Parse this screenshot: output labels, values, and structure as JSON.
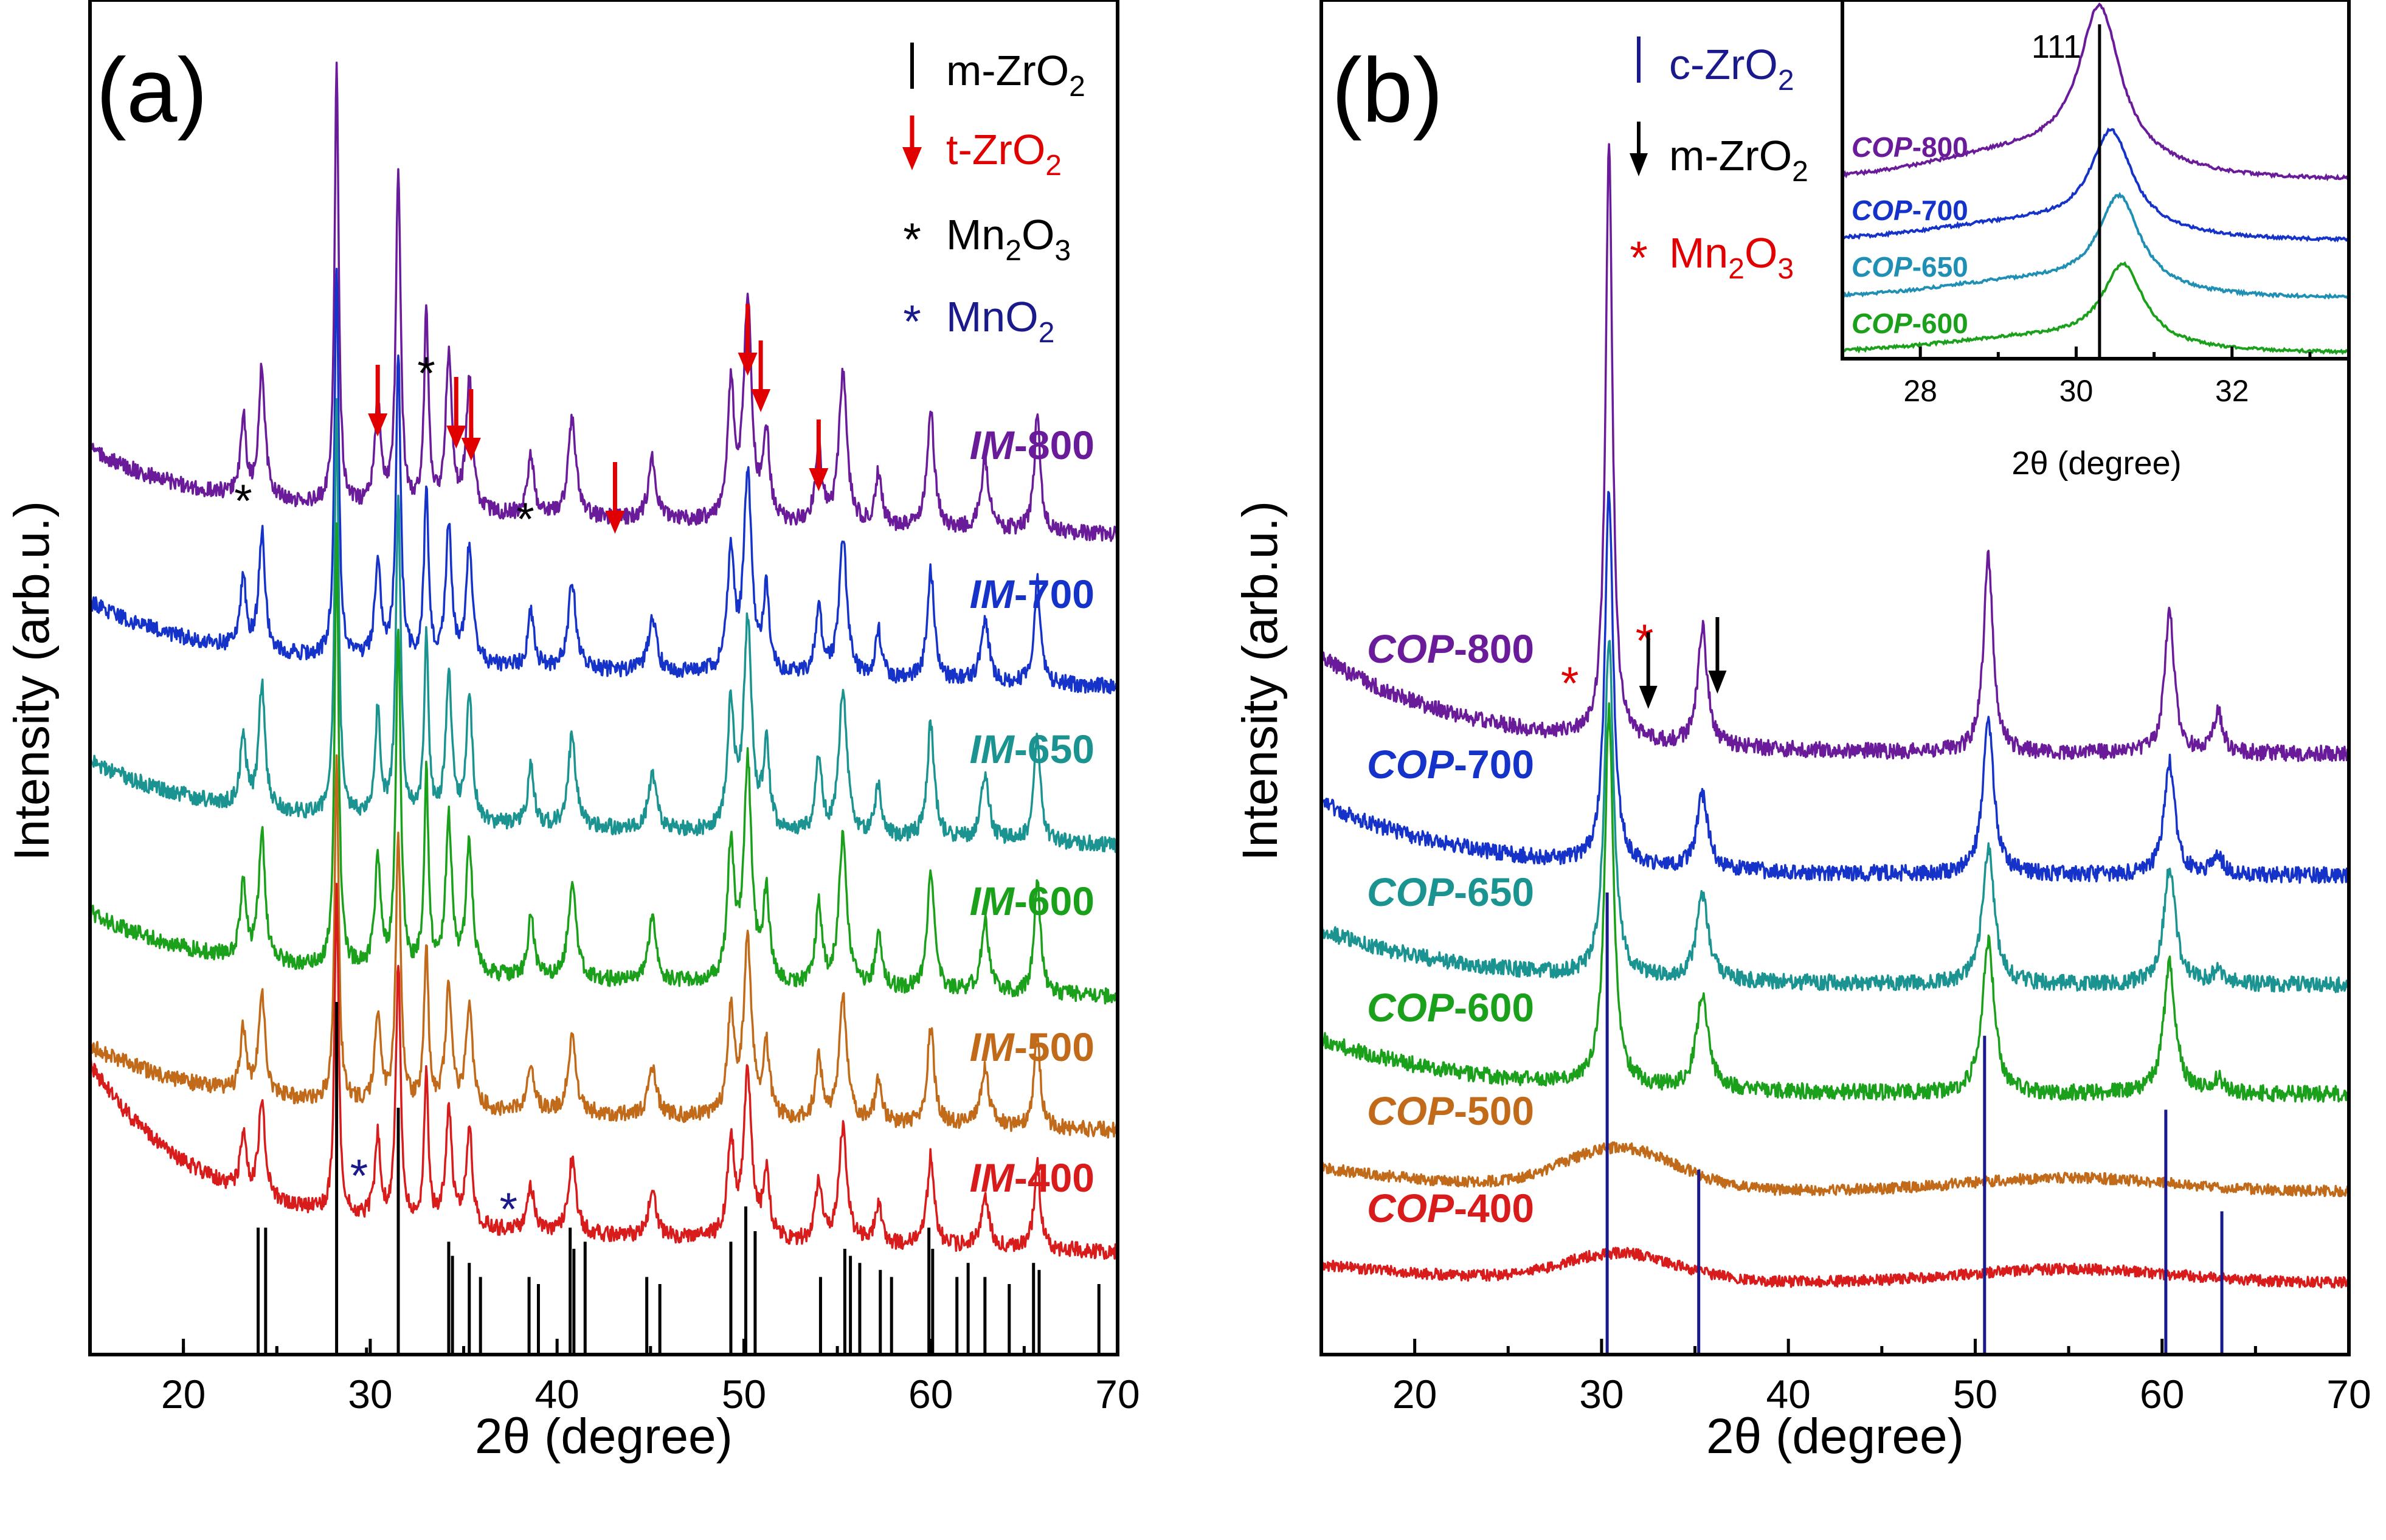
{
  "chart_data": [
    {
      "panel": "(a)",
      "type": "line",
      "xlabel": "2θ (degree)",
      "ylabel": "Intensity (arb.u.)",
      "xlim": [
        15,
        70
      ],
      "xticks": [
        20,
        30,
        40,
        50,
        60,
        70
      ],
      "xticklabels": [
        "20",
        "30",
        "40",
        "50",
        "60",
        "70"
      ],
      "legend": [
        {
          "symbol": "|",
          "main": "m-ZrO",
          "sub": "2",
          "rest": "",
          "color": "#000000"
        },
        {
          "symbol": "↓",
          "main": "t-ZrO",
          "sub": "2",
          "rest": "",
          "color": "#e00000"
        },
        {
          "symbol": "*",
          "main": "Mn",
          "sub": "2",
          "rest": "O",
          "sub2": "3",
          "color": "#000000"
        },
        {
          "symbol": "*",
          "main": "MnO",
          "sub": "2",
          "rest": "",
          "color": "#1a1a8c"
        }
      ],
      "series": [
        {
          "prefix": "IM",
          "suffix": "-800",
          "color": "#6a1b9a",
          "offset": 5.1
        },
        {
          "prefix": "IM",
          "suffix": "-700",
          "color": "#1533c9",
          "offset": 4.0
        },
        {
          "prefix": "IM",
          "suffix": "-650",
          "color": "#1a9391",
          "offset": 3.0
        },
        {
          "prefix": "IM",
          "suffix": "-600",
          "color": "#1aa01a",
          "offset": 2.0
        },
        {
          "prefix": "IM",
          "suffix": "-500",
          "color": "#c06a1a",
          "offset": 1.0
        },
        {
          "prefix": "IM",
          "suffix": "-400",
          "color": "#d81b1b",
          "offset": 0.0
        }
      ],
      "peaks_2theta": [
        24.2,
        28.2,
        31.5,
        34.2,
        35.3,
        38.6,
        40.8,
        45.1,
        49.3,
        50.2,
        55.3,
        57.2,
        60.0,
        62.9,
        65.7
      ],
      "t_ZrO2_arrows": [
        30.4,
        34.6,
        35.4,
        43.1,
        50.2,
        50.9,
        54.0
      ],
      "Mn2O3_stars": [
        23.2,
        33.0,
        38.3
      ],
      "MnO2_stars": [
        29.4,
        37.4
      ],
      "m_ZrO2_reference_lines": [
        24.0,
        24.4,
        28.2,
        31.5,
        34.2,
        34.4,
        35.3,
        35.9,
        38.5,
        39.0,
        40.7,
        40.9,
        41.5,
        44.8,
        45.5,
        49.3,
        50.1,
        50.6,
        54.1,
        55.4,
        55.7,
        56.2,
        57.3,
        57.9,
        59.9,
        60.1,
        61.4,
        62.0,
        62.9,
        64.2,
        65.5,
        65.8,
        69.0,
        20.0,
        25.0,
        29.8
      ]
    },
    {
      "panel": "(b)",
      "type": "line",
      "xlabel": "2θ (degree)",
      "ylabel": "Intensity (arb.u.)",
      "xlim": [
        15,
        70
      ],
      "xticks": [
        20,
        30,
        40,
        50,
        60,
        70
      ],
      "xticklabels": [
        "20",
        "30",
        "40",
        "50",
        "60",
        "70"
      ],
      "legend": [
        {
          "symbol": "|",
          "main": "c-ZrO",
          "sub": "2",
          "rest": "",
          "color": "#1a1a8c"
        },
        {
          "symbol": "↓",
          "main": "m-ZrO",
          "sub": "2",
          "rest": "",
          "color": "#000000"
        },
        {
          "symbol": "*",
          "main": "Mn",
          "sub": "2",
          "rest": "O",
          "sub2": "3",
          "color": "#e00000"
        }
      ],
      "series": [
        {
          "prefix": "COP",
          "suffix": "-800",
          "color": "#6a1b9a"
        },
        {
          "prefix": "COP",
          "suffix": "-700",
          "color": "#1533c9"
        },
        {
          "prefix": "COP",
          "suffix": "-650",
          "color": "#1a9391"
        },
        {
          "prefix": "COP",
          "suffix": "-600",
          "color": "#1aa01a"
        },
        {
          "prefix": "COP",
          "suffix": "-500",
          "color": "#c06a1a"
        },
        {
          "prefix": "COP",
          "suffix": "-400",
          "color": "#d81b1b"
        }
      ],
      "peaks_2theta": [
        30.4,
        35.4,
        50.6,
        60.3,
        63.0
      ],
      "c_ZrO2_reference_lines": [
        {
          "x": 30.3,
          "height": 1.0
        },
        {
          "x": 35.2,
          "height": 0.4
        },
        {
          "x": 50.5,
          "height": 0.69
        },
        {
          "x": 60.2,
          "height": 0.53
        },
        {
          "x": 63.2,
          "height": 0.31
        }
      ],
      "Mn2O3_stars": [
        28.3,
        32.3
      ],
      "m_ZrO2_arrows": [
        32.5,
        36.2
      ],
      "inset": {
        "xlabel": "2θ (degree)",
        "xlim": [
          27,
          33.5
        ],
        "xticks": [
          28,
          30,
          32
        ],
        "xticklabels": [
          "28",
          "30",
          "32"
        ],
        "reference_line": 30.3,
        "reference_label": "111",
        "series": [
          {
            "prefix": "COP",
            "suffix": "-800",
            "color": "#6a1b9a",
            "peak": 30.3
          },
          {
            "prefix": "COP",
            "suffix": "-700",
            "color": "#1533c9",
            "peak": 30.45
          },
          {
            "prefix": "COP",
            "suffix": "-650",
            "color": "#1f8fb4",
            "peak": 30.55
          },
          {
            "prefix": "COP",
            "suffix": "-600",
            "color": "#1aa01a",
            "peak": 30.6
          }
        ]
      }
    }
  ]
}
